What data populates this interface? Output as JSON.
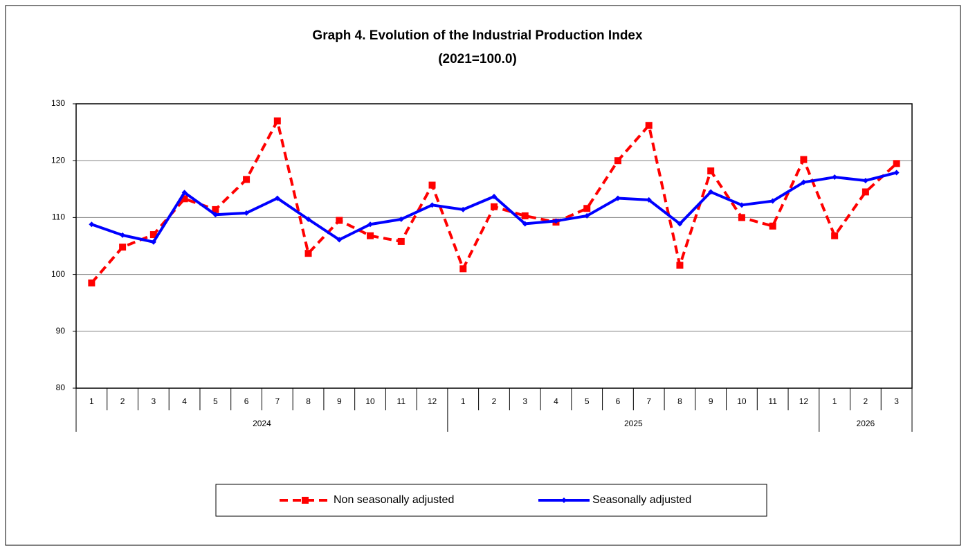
{
  "chart_data": {
    "type": "line",
    "title": "Graph 4. Evolution of the Industrial Production Index",
    "subtitle": "(2021=100.0)",
    "groups": [
      {
        "name": "2024",
        "categories": [
          "1",
          "2",
          "3",
          "4",
          "5",
          "6",
          "7",
          "8",
          "9",
          "10",
          "11",
          "12"
        ]
      },
      {
        "name": "2025",
        "categories": [
          "1",
          "2",
          "3",
          "4",
          "5",
          "6",
          "7",
          "8",
          "9",
          "10",
          "11",
          "12"
        ]
      },
      {
        "name": "2026",
        "categories": [
          "1",
          "2",
          "3"
        ]
      }
    ],
    "series": [
      {
        "name": "Non seasonally adjusted",
        "color": "#ff0000",
        "dashed": true,
        "marker": "square",
        "values": [
          98.5,
          104.8,
          107.0,
          113.3,
          111.4,
          116.7,
          127.0,
          103.7,
          109.5,
          106.8,
          105.8,
          115.7,
          101.0,
          111.9,
          110.3,
          109.2,
          111.6,
          120.0,
          126.2,
          101.6,
          118.2,
          110.0,
          108.5,
          120.2,
          106.8,
          114.5,
          119.5
        ]
      },
      {
        "name": "Seasonally adjusted",
        "color": "#0000ff",
        "dashed": false,
        "marker": "diamond",
        "values": [
          108.8,
          106.9,
          105.7,
          114.4,
          110.5,
          110.8,
          113.4,
          109.7,
          106.1,
          108.8,
          109.7,
          112.2,
          111.4,
          113.7,
          108.9,
          109.4,
          110.3,
          113.4,
          113.1,
          108.9,
          114.5,
          112.2,
          112.9,
          116.2,
          117.1,
          116.5,
          117.9
        ]
      }
    ],
    "ylim": [
      80,
      130
    ],
    "yticks": [
      80,
      90,
      100,
      110,
      120,
      130
    ],
    "grid": true,
    "legend": "bottom"
  }
}
